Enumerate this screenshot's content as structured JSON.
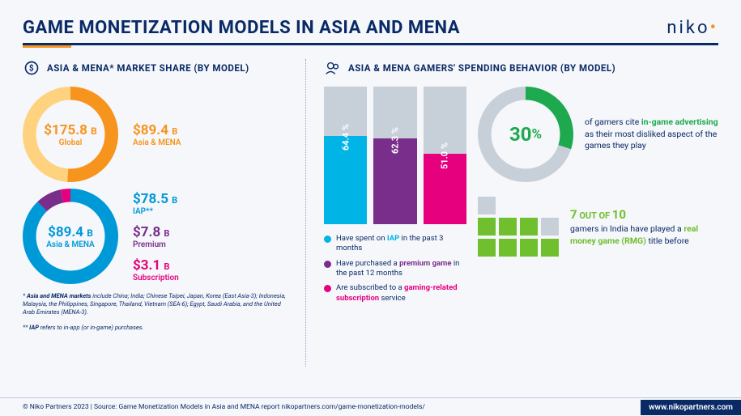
{
  "title": "GAME MONETIZATION MODELS IN ASIA AND MENA",
  "logo": {
    "text": "niko",
    "dot_color": "#f7941d"
  },
  "left": {
    "section_title": "ASIA & MENA* MARKET SHARE (BY MODEL)",
    "donut1": {
      "center_value": "$175.8",
      "center_unit": "B",
      "center_sub": "Global",
      "center_color": "#f7941d",
      "segments": [
        {
          "pct": 51,
          "color": "#f7941d"
        },
        {
          "pct": 49,
          "color": "#ffd27f"
        }
      ],
      "stroke_width": 14
    },
    "side1": {
      "value": "$89.4",
      "unit": "B",
      "label": "Asia & MENA",
      "color": "#f7941d"
    },
    "donut2": {
      "center_value": "$89.4",
      "center_unit": "B",
      "center_sub": "Asia & MENA",
      "center_color": "#0099d8",
      "segments": [
        {
          "pct": 87.8,
          "color": "#0099d8"
        },
        {
          "pct": 8.7,
          "color": "#7a2e8c"
        },
        {
          "pct": 3.5,
          "color": "#e6007e"
        }
      ],
      "stroke_width": 14
    },
    "side2": [
      {
        "value": "$78.5",
        "unit": "B",
        "label": "IAP**",
        "color": "#0099d8"
      },
      {
        "value": "$7.8",
        "unit": "B",
        "label": "Premium",
        "color": "#7a2e8c"
      },
      {
        "value": "$3.1",
        "unit": "B",
        "label": "Subscription",
        "color": "#e6007e"
      }
    ],
    "footnote1_label": "Asia and MENA markets",
    "footnote1_text": " include China; India; Chinese Taipei, Japan, Korea (East Asia-3); Indonesia, Malaysia, the Philippines, Singapore, Thailand, Vietnam (SEA-6); Egypt, Saudi Arabia, and the United Arab Emirates (MENA-3).",
    "footnote2_label": "IAP",
    "footnote2_text": " refers to in-app (or in-game) purchases."
  },
  "right": {
    "section_title": "ASIA & MENA GAMERS' SPENDING BEHAVIOR (BY MODEL)",
    "bars": [
      {
        "pct": 64.4,
        "label": "64.4 %",
        "color": "#00b4e6"
      },
      {
        "pct": 62.3,
        "label": "62.3 %",
        "color": "#7a2e8c"
      },
      {
        "pct": 51.0,
        "label": "51.0 %",
        "color": "#e6007e"
      }
    ],
    "bar_bg_color": "#c7cfd9",
    "legend": [
      {
        "color": "#00b4e6",
        "prefix": "Have spent on ",
        "bold": "IAP",
        "suffix": " in the past 3 months"
      },
      {
        "color": "#7a2e8c",
        "prefix": "Have purchased a ",
        "bold": "premium game",
        "suffix": " in the past 12 months"
      },
      {
        "color": "#e6007e",
        "prefix": "Are subscribed to a ",
        "bold": "gaming-related subscription",
        "suffix": " service"
      }
    ],
    "donut30": {
      "value": "30",
      "unit": "%",
      "fill_pct": 30,
      "fill_color": "#1fa94f",
      "bg_color": "#c7cfd9",
      "stroke_width": 14,
      "text_prefix": "of gamers cite ",
      "text_bold": "in-game advertising",
      "text_suffix": " as their most disliked aspect of the games they play"
    },
    "seven": {
      "value": "7",
      "out_of": "10",
      "headline_a": "7",
      "headline_mid": " OUT OF ",
      "headline_b": "10",
      "text_prefix": "gamers in India have played a ",
      "text_bold": "real money game (RMG)",
      "text_suffix": " title before",
      "filled": 7,
      "total_cols": 4,
      "total_rows": 3,
      "top_filled_cols": 1,
      "on_color": "#6fbf2e",
      "off_color": "#c7cfd9"
    }
  },
  "footer": {
    "left": "© Niko Partners 2023  |  Source: Game Monetization Models in Asia and MENA report nikopartners.com/game-monetization-models/",
    "right": "www.nikopartners.com"
  }
}
